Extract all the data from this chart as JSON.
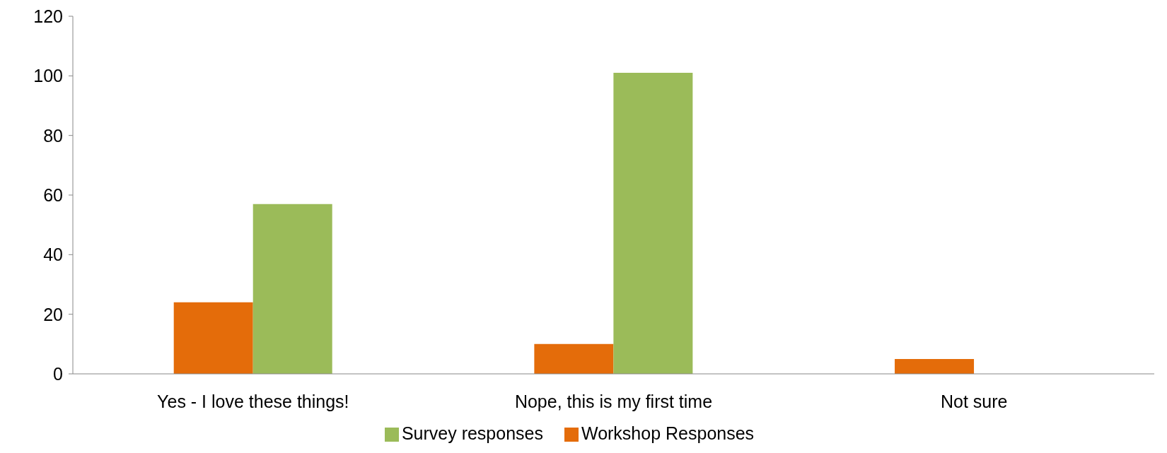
{
  "chart_data": {
    "type": "bar",
    "categories": [
      "Yes - I love these things!",
      "Nope, this is my first time",
      "Not sure"
    ],
    "series": [
      {
        "name": "Workshop Responses",
        "color": "#e46c0a",
        "values": [
          24,
          10,
          5
        ]
      },
      {
        "name": "Survey responses",
        "color": "#9bbb59",
        "values": [
          57,
          101,
          0
        ]
      }
    ],
    "ylim": [
      0,
      120
    ],
    "yticks": [
      0,
      20,
      40,
      60,
      80,
      100,
      120
    ],
    "grid": false,
    "legend": "bottom"
  }
}
